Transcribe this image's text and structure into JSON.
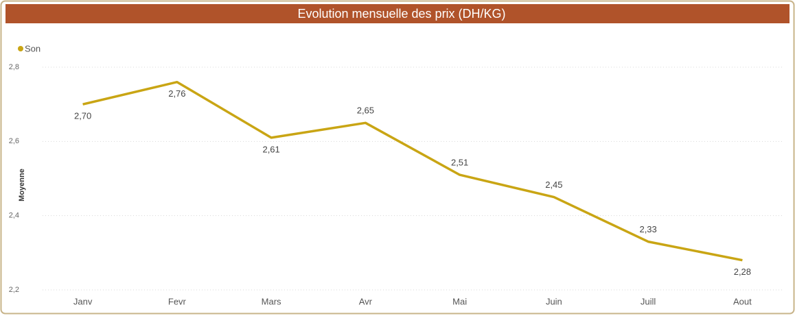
{
  "chart_data": {
    "type": "line",
    "title": "Evolution mensuelle des prix (DH/KG)",
    "y_label": "Moyenne",
    "categories": [
      "Janv",
      "Fevr",
      "Mars",
      "Avr",
      "Mai",
      "Juin",
      "Juill",
      "Aout"
    ],
    "series": [
      {
        "name": "Son",
        "color": "#c9a514",
        "values": [
          2.7,
          2.76,
          2.61,
          2.65,
          2.51,
          2.45,
          2.33,
          2.28
        ],
        "value_labels": [
          "2,70",
          "2,76",
          "2,61",
          "2,65",
          "2,51",
          "2,45",
          "2,33",
          "2,28"
        ]
      }
    ],
    "ylim": [
      2.2,
      2.8
    ],
    "yticks": [
      {
        "value": 2.2,
        "label": "2,2"
      },
      {
        "value": 2.4,
        "label": "2,4"
      },
      {
        "value": 2.6,
        "label": "2,6"
      },
      {
        "value": 2.8,
        "label": "2,8"
      }
    ],
    "grid": true,
    "legend": "top-left"
  }
}
